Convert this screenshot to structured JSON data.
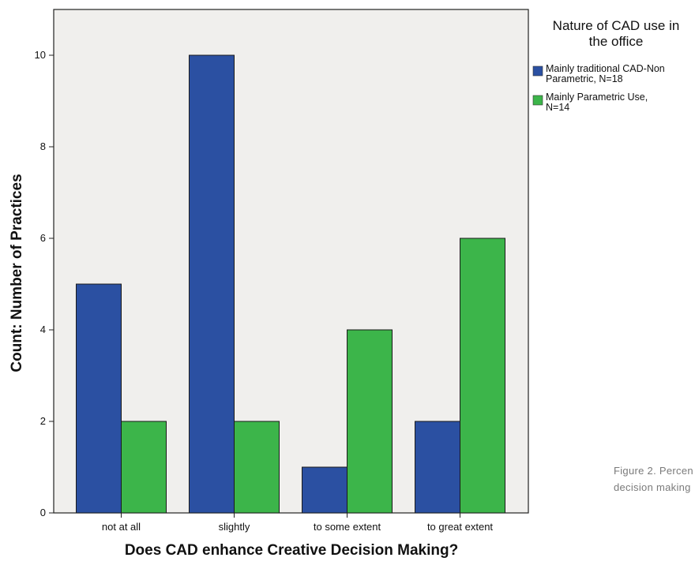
{
  "chart_data": {
    "type": "bar",
    "xlabel": "Does CAD enhance Creative Decision Making?",
    "ylabel": "Count: Number of Practices",
    "categories": [
      "not at all",
      "slightly",
      "to some extent",
      "to great extent"
    ],
    "ylim": [
      0,
      11
    ],
    "yticks": [
      0,
      2,
      4,
      6,
      8,
      10
    ],
    "grid": false,
    "legend_position": "right",
    "legend": {
      "title_lines": [
        "Nature of CAD use in",
        "the office"
      ],
      "entries": [
        {
          "lines": [
            "Mainly traditional CAD-Non",
            "Parametric, N=18"
          ]
        },
        {
          "lines": [
            "Mainly Parametric Use,",
            "N=14"
          ]
        }
      ]
    },
    "series": [
      {
        "name": "Mainly traditional CAD-Non Parametric, N=18",
        "values": [
          5,
          10,
          1,
          2
        ],
        "color": "#2b50a2"
      },
      {
        "name": "Mainly Parametric Use, N=14",
        "values": [
          2,
          2,
          4,
          6
        ],
        "color": "#3cb54a"
      }
    ],
    "plot_background": "#f0efed"
  },
  "caption": {
    "lines": [
      "Figure 2. Percen",
      "decision making"
    ]
  }
}
